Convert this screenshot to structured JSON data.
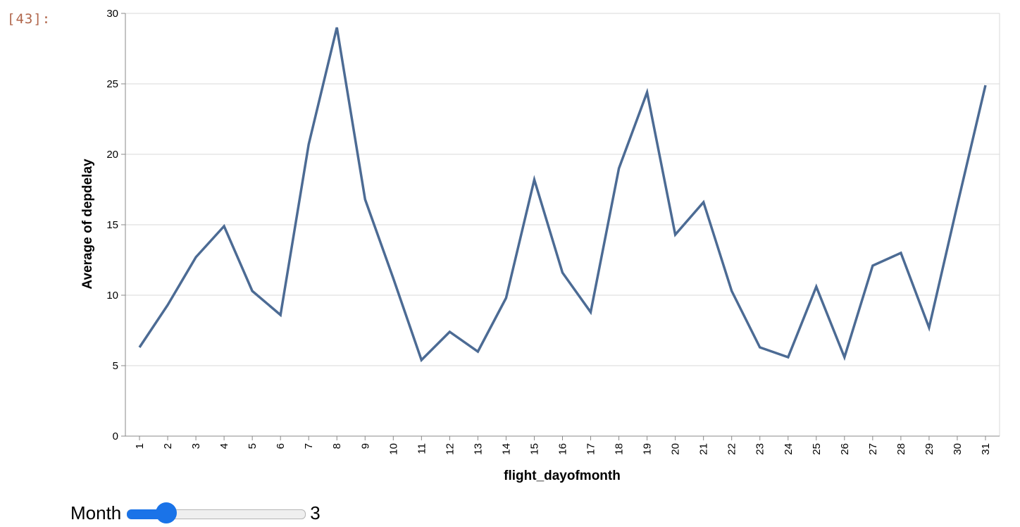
{
  "cell": {
    "prompt": "[43]:"
  },
  "chart_data": {
    "type": "line",
    "title": "",
    "xlabel": "flight_dayofmonth",
    "ylabel": "Average of depdelay",
    "ylim": [
      0,
      30
    ],
    "yticks": [
      0,
      5,
      10,
      15,
      20,
      25,
      30
    ],
    "grid": true,
    "categories": [
      "1",
      "2",
      "3",
      "4",
      "5",
      "6",
      "7",
      "8",
      "9",
      "10",
      "11",
      "12",
      "13",
      "14",
      "15",
      "16",
      "17",
      "18",
      "19",
      "20",
      "21",
      "22",
      "23",
      "24",
      "25",
      "26",
      "27",
      "28",
      "29",
      "30",
      "31"
    ],
    "series": [
      {
        "color": "#4c6b94",
        "values": [
          6.3,
          9.3,
          12.7,
          14.9,
          10.3,
          8.6,
          20.7,
          29.0,
          16.8,
          11.2,
          5.4,
          7.4,
          6.0,
          9.8,
          18.2,
          11.6,
          8.8,
          19.0,
          24.4,
          14.3,
          16.6,
          10.3,
          6.3,
          5.6,
          10.6,
          5.6,
          12.1,
          13.0,
          7.7,
          16.4,
          24.9
        ]
      }
    ]
  },
  "widget": {
    "label": "Month",
    "value": "3",
    "min": 1,
    "max": 12,
    "current": 3,
    "accent": "#1a73e8"
  }
}
